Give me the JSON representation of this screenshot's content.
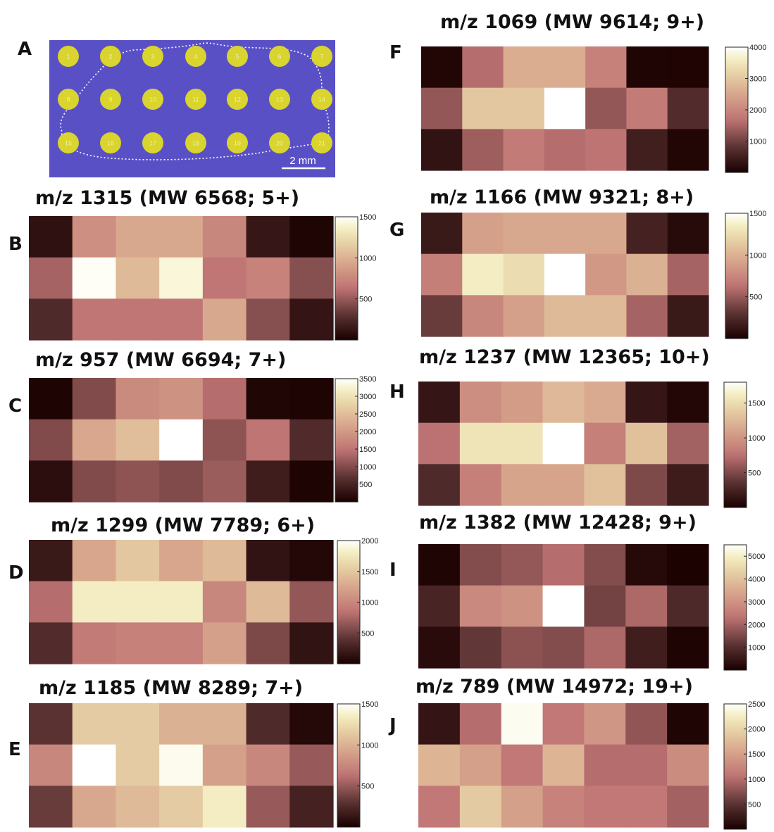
{
  "colors": {
    "photo_background": "#5a50c6",
    "spot_fill": "#d9d42e",
    "spot_label": "#f2f0a0",
    "outline": "#ffffff"
  },
  "photo": {
    "letter": "A",
    "spot_labels": [
      "1",
      "2",
      "3",
      "4",
      "5",
      "6",
      "7",
      "8",
      "9",
      "10",
      "11",
      "12",
      "13",
      "14",
      "15",
      "16",
      "17",
      "18",
      "19",
      "20",
      "21"
    ],
    "scale_bar_label": "2 mm"
  },
  "chart_data": [
    {
      "type": "heatmap",
      "letter": "B",
      "title": "m/z 1315 (MW 6568; 5+)",
      "rows": 3,
      "cols": 7,
      "cbar_ticks": [
        500,
        1000,
        1500
      ],
      "cbar_range": [
        0,
        1500
      ],
      "values": [
        [
          100,
          800,
          950,
          950,
          750,
          130,
          30
        ],
        [
          550,
          1480,
          1050,
          1420,
          650,
          720,
          450
        ],
        [
          250,
          650,
          650,
          650,
          950,
          450,
          120
        ]
      ]
    },
    {
      "type": "heatmap",
      "letter": "C",
      "title": "m/z 957 (MW 6694; 7+)",
      "rows": 3,
      "cols": 7,
      "cbar_ticks": [
        500,
        1000,
        1500,
        2000,
        2500,
        3000,
        3500
      ],
      "cbar_range": [
        0,
        3500
      ],
      "values": [
        [
          50,
          1000,
          1800,
          1900,
          1400,
          80,
          60
        ],
        [
          1000,
          2200,
          2500,
          3500,
          1100,
          1500,
          600
        ],
        [
          200,
          1000,
          1100,
          1000,
          1200,
          400,
          60
        ]
      ]
    },
    {
      "type": "heatmap",
      "letter": "D",
      "title": "m/z 1299 (MW 7789; 6+)",
      "rows": 3,
      "cols": 7,
      "cbar_ticks": [
        500,
        1000,
        1500,
        2000
      ],
      "cbar_range": [
        0,
        2000
      ],
      "values": [
        [
          200,
          1250,
          1500,
          1250,
          1400,
          150,
          60
        ],
        [
          800,
          1800,
          1800,
          1800,
          1000,
          1400,
          650
        ],
        [
          350,
          900,
          950,
          950,
          1200,
          550,
          150
        ]
      ]
    },
    {
      "type": "heatmap",
      "letter": "E",
      "title": "m/z 1185 (MW 8289; 7+)",
      "rows": 3,
      "cols": 7,
      "cbar_ticks": [
        500,
        1000,
        1500
      ],
      "cbar_range": [
        0,
        1500
      ],
      "values": [
        [
          300,
          1150,
          1150,
          1000,
          1000,
          250,
          50
        ],
        [
          750,
          1500,
          1150,
          1460,
          900,
          750,
          500
        ],
        [
          350,
          950,
          1050,
          1150,
          1350,
          500,
          200
        ]
      ]
    },
    {
      "type": "heatmap",
      "letter": "F",
      "title": "m/z 1069 (MW 9614; 9+)",
      "rows": 3,
      "cols": 7,
      "cbar_ticks": [
        1000,
        2000,
        3000,
        4000
      ],
      "cbar_range": [
        0,
        4000
      ],
      "values": [
        [
          100,
          1600,
          2600,
          2600,
          1900,
          80,
          70
        ],
        [
          1300,
          3000,
          3000,
          4000,
          1300,
          1800,
          700
        ],
        [
          300,
          1400,
          1800,
          1600,
          1700,
          500,
          100
        ]
      ]
    },
    {
      "type": "heatmap",
      "letter": "G",
      "title": "m/z 1166 (MW 9321; 8+)",
      "rows": 3,
      "cols": 7,
      "cbar_ticks": [
        500,
        1000,
        1500
      ],
      "cbar_range": [
        0,
        1500
      ],
      "values": [
        [
          150,
          900,
          950,
          950,
          950,
          200,
          60
        ],
        [
          700,
          1350,
          1250,
          1500,
          850,
          1000,
          550
        ],
        [
          350,
          750,
          900,
          1050,
          1050,
          550,
          150
        ]
      ]
    },
    {
      "type": "heatmap",
      "letter": "H",
      "title": "m/z 1237 (MW 12365; 10+)",
      "rows": 3,
      "cols": 7,
      "cbar_ticks": [
        500,
        1000,
        1500
      ],
      "cbar_range": [
        0,
        1800
      ],
      "values": [
        [
          150,
          950,
          1050,
          1250,
          1150,
          150,
          50
        ],
        [
          750,
          1550,
          1550,
          1800,
          850,
          1300,
          650
        ],
        [
          300,
          850,
          1100,
          1100,
          1300,
          500,
          200
        ]
      ]
    },
    {
      "type": "heatmap",
      "letter": "I",
      "title": "m/z 1382 (MW 12428; 9+)",
      "rows": 3,
      "cols": 7,
      "cbar_ticks": [
        1000,
        2000,
        3000,
        4000,
        5000
      ],
      "cbar_range": [
        0,
        5500
      ],
      "values": [
        [
          100,
          1600,
          1800,
          2200,
          1600,
          200,
          50
        ],
        [
          800,
          2800,
          3000,
          5500,
          1400,
          2100,
          900
        ],
        [
          250,
          1200,
          1700,
          1600,
          2100,
          650,
          80
        ]
      ]
    },
    {
      "type": "heatmap",
      "letter": "J",
      "title": "m/z 789 (MW 14972; 19+)",
      "rows": 3,
      "cols": 7,
      "cbar_ticks": [
        500,
        1000,
        1500,
        2000,
        2500
      ],
      "cbar_range": [
        0,
        2500
      ],
      "values": [
        [
          200,
          1000,
          2450,
          1100,
          1400,
          800,
          50
        ],
        [
          1700,
          1500,
          1100,
          1700,
          1000,
          1000,
          1300
        ],
        [
          1100,
          1900,
          1500,
          1200,
          1100,
          1100,
          900
        ]
      ]
    }
  ]
}
